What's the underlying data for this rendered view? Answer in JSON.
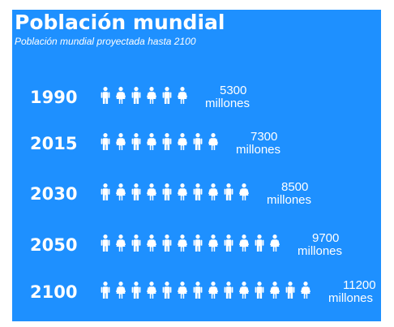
{
  "header": {
    "title": "Población mundial",
    "subtitle": "Población mundial proyectada hasta 2100"
  },
  "colors": {
    "panel": "#1e90ff",
    "icon": "#ffffff",
    "text": "#ffffff",
    "page": "#ffffff"
  },
  "icon_name": "person-icon",
  "chart_data": {
    "type": "bar",
    "title": "Población mundial",
    "subtitle": "Población mundial proyectada hasta 2100",
    "categories": [
      "1990",
      "2015",
      "2030",
      "2050",
      "2100"
    ],
    "values": [
      5300,
      7300,
      8500,
      9700,
      11200
    ],
    "value_labels": [
      "5300",
      "7300",
      "8500",
      "9700",
      "11200"
    ],
    "unit": "millones",
    "icon_counts": [
      6,
      8,
      10,
      12,
      14
    ]
  }
}
